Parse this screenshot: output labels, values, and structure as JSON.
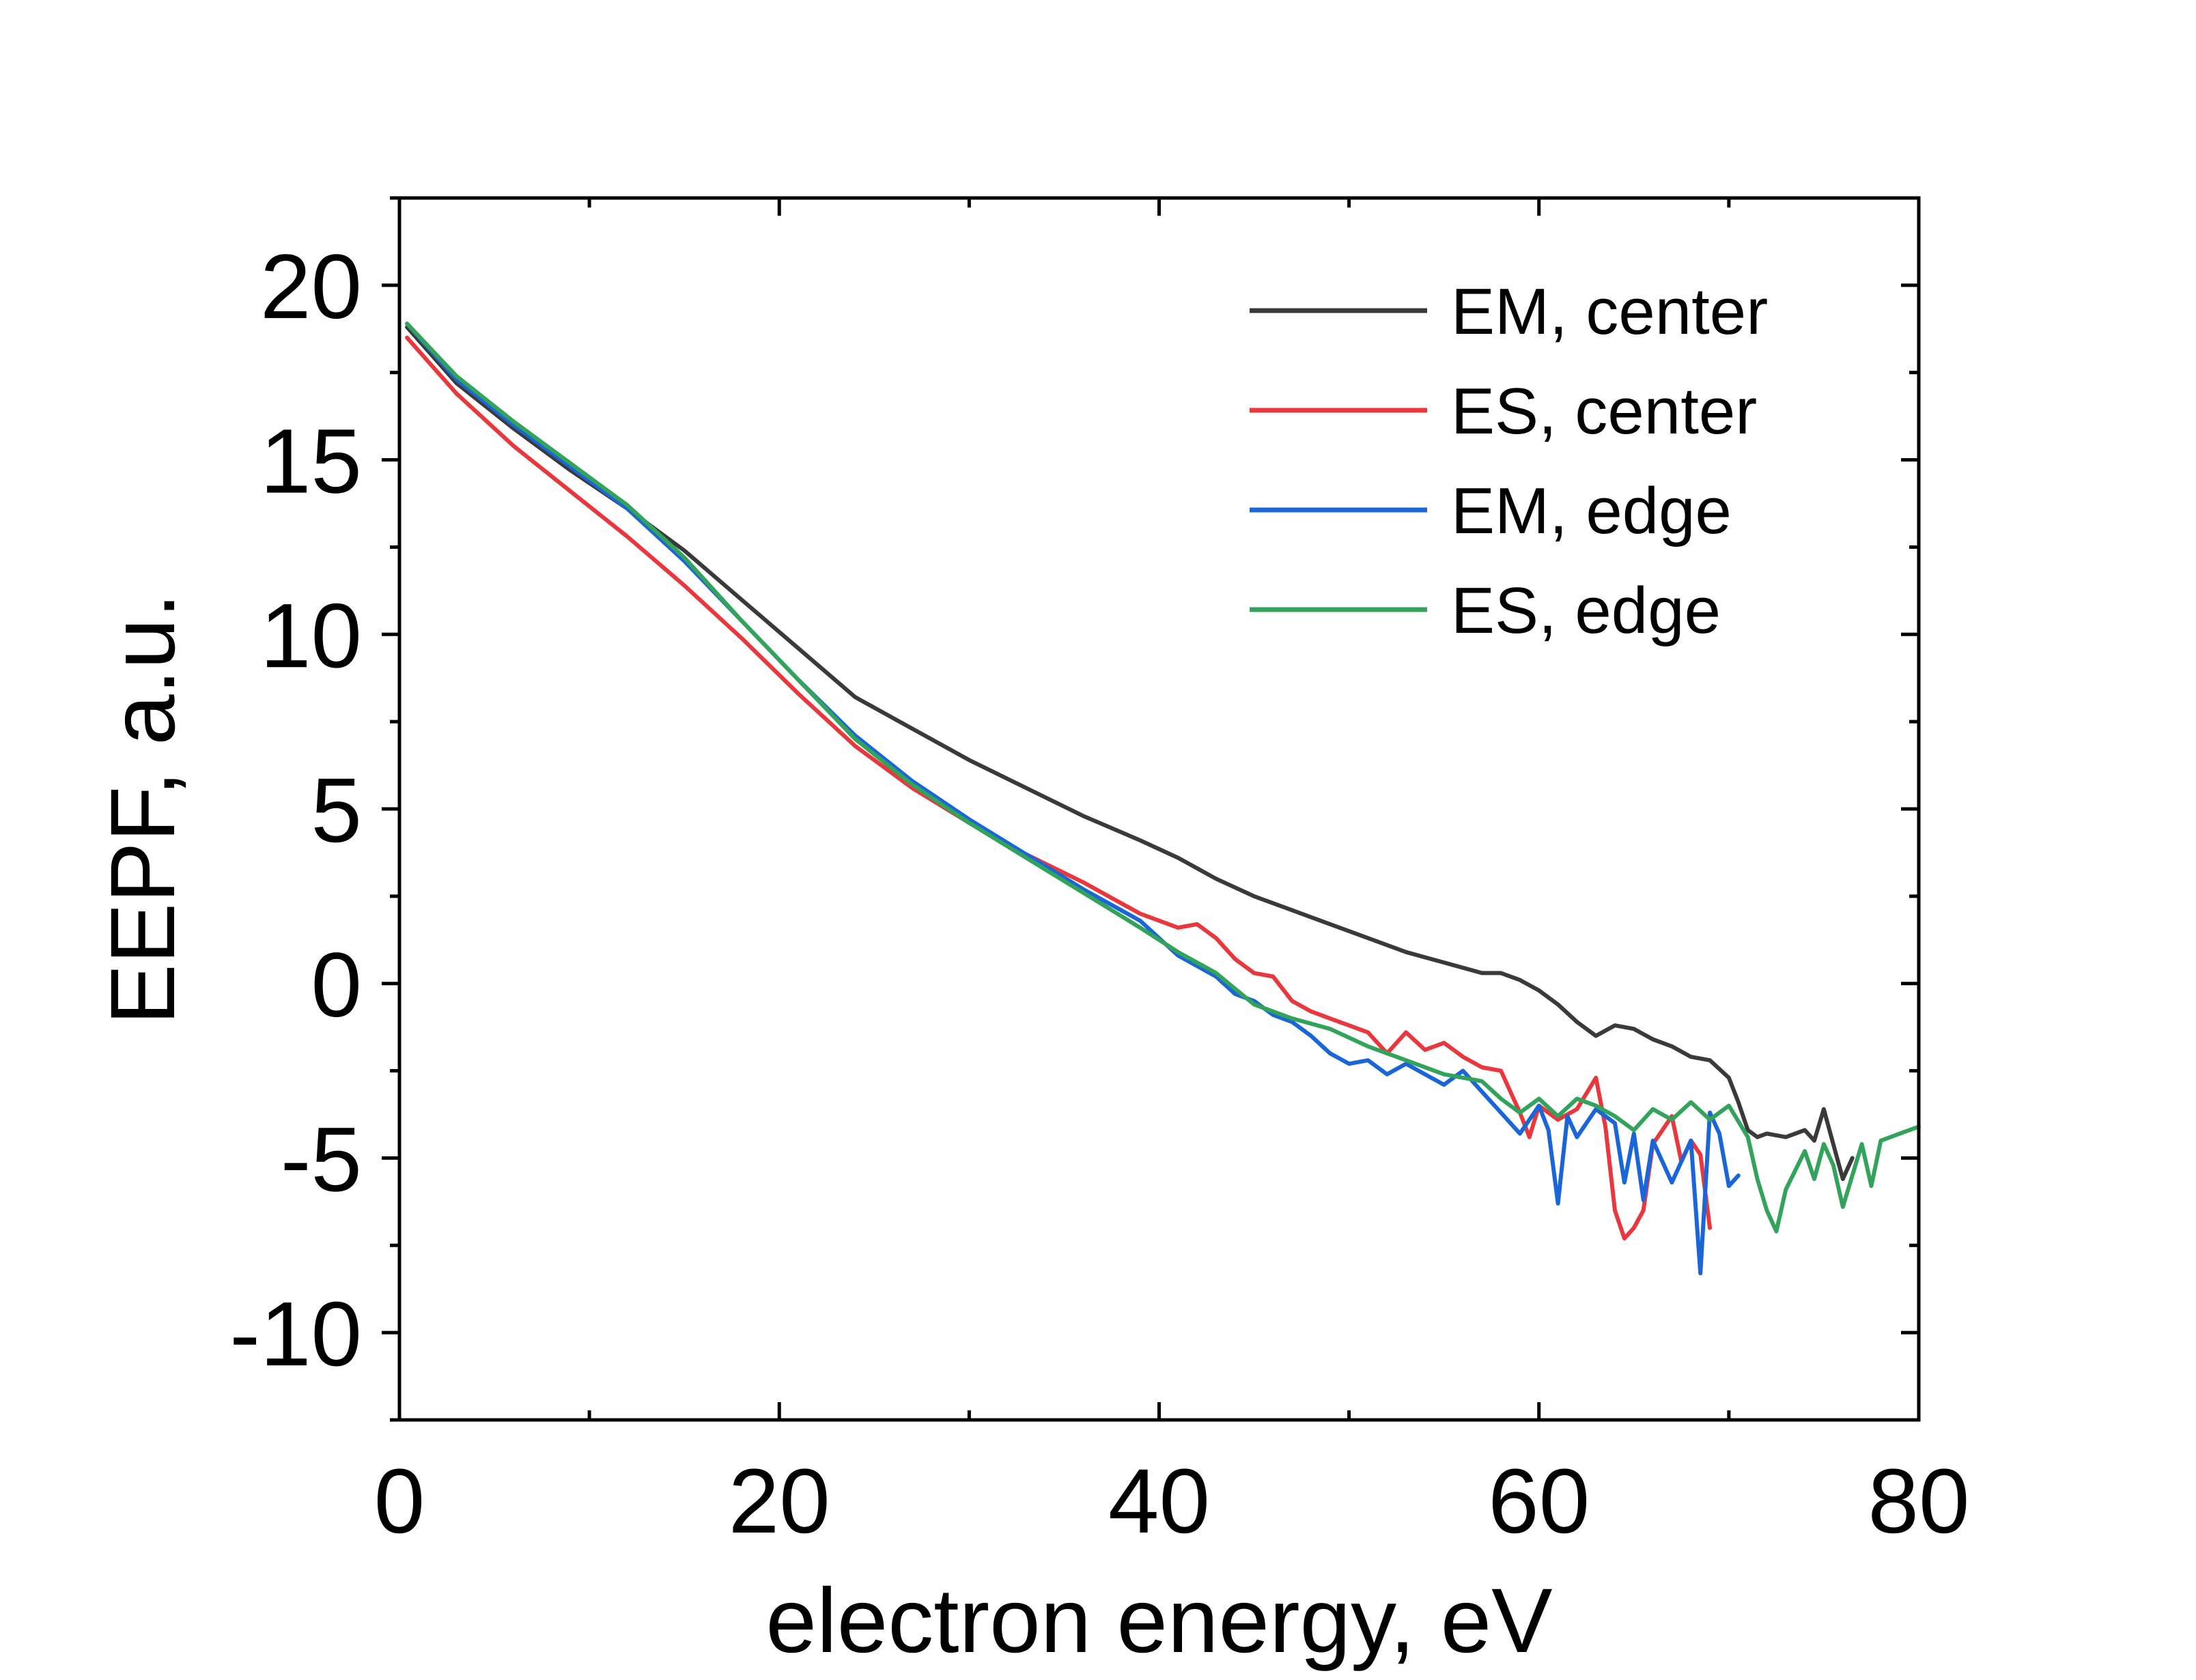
{
  "chart_data": {
    "type": "line",
    "title": "",
    "xlabel": "electron energy, eV",
    "ylabel": "EEPF, a.u.",
    "xlim": [
      0,
      80
    ],
    "ylim": [
      -12.5,
      22.5
    ],
    "xticks": [
      0,
      20,
      40,
      60,
      80
    ],
    "xtick_labels": [
      "0",
      "20",
      "40",
      "60",
      "80"
    ],
    "yticks": [
      -10,
      -5,
      0,
      5,
      10,
      15,
      20
    ],
    "ytick_labels": [
      "-10",
      "-5",
      "0",
      "5",
      "10",
      "15",
      "20"
    ],
    "grid": false,
    "legend_position": "top-right",
    "series": [
      {
        "name": "EM, center",
        "color": "#3a3a3a",
        "x": [
          0.4,
          3,
          6,
          9,
          12,
          15,
          18,
          21,
          24,
          27,
          30,
          33,
          36,
          39,
          41,
          43,
          45,
          47,
          49,
          51,
          53,
          55,
          57,
          58,
          59,
          60,
          61,
          62,
          63,
          64,
          65,
          66,
          67,
          68,
          69,
          70,
          70.5,
          71,
          71.5,
          72,
          73,
          74,
          74.5,
          75,
          75.5,
          76,
          76.5
        ],
        "y": [
          18.8,
          17.2,
          15.9,
          14.7,
          13.6,
          12.4,
          11.0,
          9.6,
          8.2,
          7.3,
          6.4,
          5.6,
          4.8,
          4.1,
          3.6,
          3.0,
          2.5,
          2.1,
          1.7,
          1.3,
          0.9,
          0.6,
          0.3,
          0.3,
          0.1,
          -0.2,
          -0.6,
          -1.1,
          -1.5,
          -1.2,
          -1.3,
          -1.6,
          -1.8,
          -2.1,
          -2.2,
          -2.7,
          -3.4,
          -4.2,
          -4.4,
          -4.3,
          -4.4,
          -4.2,
          -4.5,
          -3.6,
          -4.6,
          -5.6,
          -5.0
        ]
      },
      {
        "name": "ES, center",
        "color": "#e8383d",
        "x": [
          0.4,
          3,
          6,
          9,
          12,
          15,
          18,
          21,
          24,
          27,
          30,
          33,
          36,
          39,
          41,
          42,
          43,
          44,
          45,
          46,
          47,
          48,
          49,
          50,
          51,
          52,
          53,
          54,
          55,
          56,
          57,
          58,
          58.5,
          59,
          59.5,
          60,
          61,
          62,
          63,
          63.5,
          64,
          64.5,
          65,
          65.5,
          66,
          67,
          67.5,
          68,
          68.5,
          69
        ],
        "y": [
          18.5,
          16.9,
          15.4,
          14.1,
          12.8,
          11.4,
          9.9,
          8.3,
          6.8,
          5.6,
          4.6,
          3.7,
          2.9,
          2.0,
          1.6,
          1.7,
          1.3,
          0.7,
          0.3,
          0.2,
          -0.5,
          -0.8,
          -1.0,
          -1.2,
          -1.4,
          -2.0,
          -1.4,
          -1.9,
          -1.7,
          -2.1,
          -2.4,
          -2.5,
          -3.1,
          -3.7,
          -4.4,
          -3.5,
          -3.9,
          -3.6,
          -2.7,
          -4.1,
          -6.5,
          -7.3,
          -7.0,
          -6.5,
          -4.6,
          -3.8,
          -5.1,
          -4.5,
          -4.9,
          -7.0
        ]
      },
      {
        "name": "EM, edge",
        "color": "#1a66d9",
        "x": [
          0.4,
          3,
          6,
          9,
          12,
          15,
          18,
          21,
          24,
          27,
          30,
          33,
          36,
          39,
          41,
          43,
          44,
          45,
          46,
          47,
          48,
          49,
          50,
          51,
          52,
          53,
          54,
          55,
          56,
          57,
          58,
          59,
          60,
          60.5,
          61,
          61.5,
          62,
          63,
          64,
          64.5,
          65,
          65.5,
          66,
          67,
          68,
          68.5,
          69,
          69.5,
          70,
          70.5
        ],
        "y": [
          18.9,
          17.3,
          16.0,
          14.8,
          13.6,
          12.1,
          10.4,
          8.7,
          7.1,
          5.8,
          4.7,
          3.7,
          2.7,
          1.8,
          0.8,
          0.2,
          -0.3,
          -0.5,
          -0.9,
          -1.1,
          -1.5,
          -2.0,
          -2.3,
          -2.2,
          -2.6,
          -2.3,
          -2.6,
          -2.9,
          -2.5,
          -3.1,
          -3.7,
          -4.3,
          -3.5,
          -4.2,
          -6.3,
          -3.8,
          -4.4,
          -3.6,
          -4.0,
          -5.7,
          -4.3,
          -6.2,
          -4.5,
          -5.7,
          -4.5,
          -8.3,
          -3.7,
          -4.3,
          -5.8,
          -5.5
        ]
      },
      {
        "name": "ES, edge",
        "color": "#32a35a",
        "x": [
          0.4,
          3,
          6,
          9,
          12,
          15,
          18,
          21,
          24,
          27,
          30,
          33,
          36,
          39,
          41,
          43,
          45,
          47,
          49,
          51,
          53,
          55,
          57,
          58,
          59,
          60,
          61,
          62,
          63,
          64,
          65,
          66,
          67,
          68,
          69,
          70,
          71,
          71.5,
          72,
          72.5,
          73,
          74,
          74.5,
          75,
          75.5,
          76,
          77,
          77.5,
          78,
          79,
          80
        ],
        "y": [
          18.9,
          17.4,
          16.1,
          14.9,
          13.7,
          12.2,
          10.4,
          8.7,
          7.0,
          5.7,
          4.6,
          3.6,
          2.6,
          1.6,
          0.9,
          0.3,
          -0.6,
          -1.0,
          -1.3,
          -1.8,
          -2.2,
          -2.6,
          -2.8,
          -3.3,
          -3.7,
          -3.3,
          -3.8,
          -3.3,
          -3.5,
          -3.8,
          -4.2,
          -3.6,
          -3.9,
          -3.4,
          -3.9,
          -3.5,
          -4.4,
          -5.6,
          -6.5,
          -7.1,
          -5.9,
          -4.8,
          -5.6,
          -4.6,
          -5.2,
          -6.4,
          -4.6,
          -5.8,
          -4.5,
          -4.3,
          -4.1
        ]
      }
    ]
  }
}
